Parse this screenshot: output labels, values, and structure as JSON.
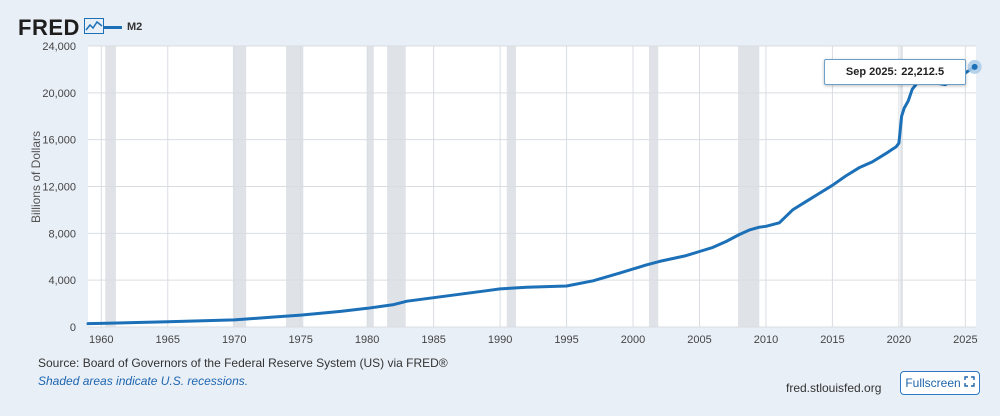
{
  "brand": {
    "name": "FRED",
    "icon": "line-chart-icon"
  },
  "legend": {
    "label": "M2",
    "color": "#1c70b8"
  },
  "tooltip": {
    "date": "Sep 2025:",
    "value": "22,212.5"
  },
  "source_text": "Source: Board of Governors of the Federal Reserve System (US) via FRED®",
  "recession_note": "Shaded areas indicate U.S. recessions.",
  "site": "fred.stlouisfed.org",
  "fullscreen": {
    "label": "Fullscreen",
    "icon": "expand-icon"
  },
  "chart_data": {
    "type": "line",
    "title": "",
    "xlabel": "",
    "ylabel": "Billions of Dollars",
    "xlim": [
      1959,
      2025.8
    ],
    "ylim": [
      0,
      24000
    ],
    "grid": true,
    "legend_position": "top-left",
    "x_ticks": [
      {
        "value": 1960,
        "label": "1960"
      },
      {
        "value": 1965,
        "label": "1965"
      },
      {
        "value": 1970,
        "label": "1970"
      },
      {
        "value": 1975,
        "label": "1975"
      },
      {
        "value": 1980,
        "label": "1980"
      },
      {
        "value": 1985,
        "label": "1985"
      },
      {
        "value": 1990,
        "label": "1990"
      },
      {
        "value": 1995,
        "label": "1995"
      },
      {
        "value": 2000,
        "label": "2000"
      },
      {
        "value": 2005,
        "label": "2005"
      },
      {
        "value": 2010,
        "label": "2010"
      },
      {
        "value": 2015,
        "label": "2015"
      },
      {
        "value": 2020,
        "label": "2020"
      },
      {
        "value": 2025,
        "label": "2025"
      }
    ],
    "y_ticks": [
      {
        "value": 0,
        "label": "0"
      },
      {
        "value": 4000,
        "label": "4,000"
      },
      {
        "value": 8000,
        "label": "8,000"
      },
      {
        "value": 12000,
        "label": "12,000"
      },
      {
        "value": 16000,
        "label": "16,000"
      },
      {
        "value": 20000,
        "label": "20,000"
      },
      {
        "value": 24000,
        "label": "24,000"
      }
    ],
    "recessions": [
      [
        1960.3,
        1961.1
      ],
      [
        1969.9,
        1970.9
      ],
      [
        1973.9,
        1975.2
      ],
      [
        1980.0,
        1980.5
      ],
      [
        1981.5,
        1982.9
      ],
      [
        1990.5,
        1991.2
      ],
      [
        2001.2,
        2001.9
      ],
      [
        2007.9,
        2009.5
      ],
      [
        2020.1,
        2020.3
      ]
    ],
    "series": [
      {
        "name": "M2",
        "color": "#1c70b8",
        "x": [
          1959,
          1960,
          1965,
          1970,
          1973,
          1975,
          1978,
          1980,
          1982,
          1983,
          1985,
          1987,
          1989,
          1990,
          1992,
          1995,
          1997,
          1999,
          2001,
          2002,
          2004,
          2005,
          2006,
          2007,
          2008,
          2008.8,
          2009.5,
          2010,
          2011,
          2011.6,
          2012,
          2013,
          2014,
          2015,
          2016,
          2017,
          2018,
          2019,
          2019.8,
          2020.0,
          2020.2,
          2020.4,
          2020.7,
          2021,
          2021.5,
          2022,
          2022.3,
          2023,
          2023.5,
          2024,
          2024.5,
          2025,
          2025.7
        ],
        "y": [
          290,
          310,
          450,
          610,
          850,
          1020,
          1330,
          1600,
          1910,
          2200,
          2500,
          2800,
          3100,
          3250,
          3400,
          3500,
          3950,
          4600,
          5300,
          5600,
          6100,
          6450,
          6800,
          7300,
          7900,
          8300,
          8520,
          8600,
          8900,
          9550,
          10000,
          10700,
          11400,
          12100,
          12900,
          13600,
          14100,
          14800,
          15400,
          15700,
          18000,
          18700,
          19300,
          20300,
          21000,
          21700,
          21600,
          20800,
          20700,
          21000,
          21300,
          21700,
          22212.5
        ]
      }
    ],
    "highlight": {
      "x": 2025.7,
      "y": 22212.5,
      "label": "Sep 2025:  22,212.5"
    }
  }
}
